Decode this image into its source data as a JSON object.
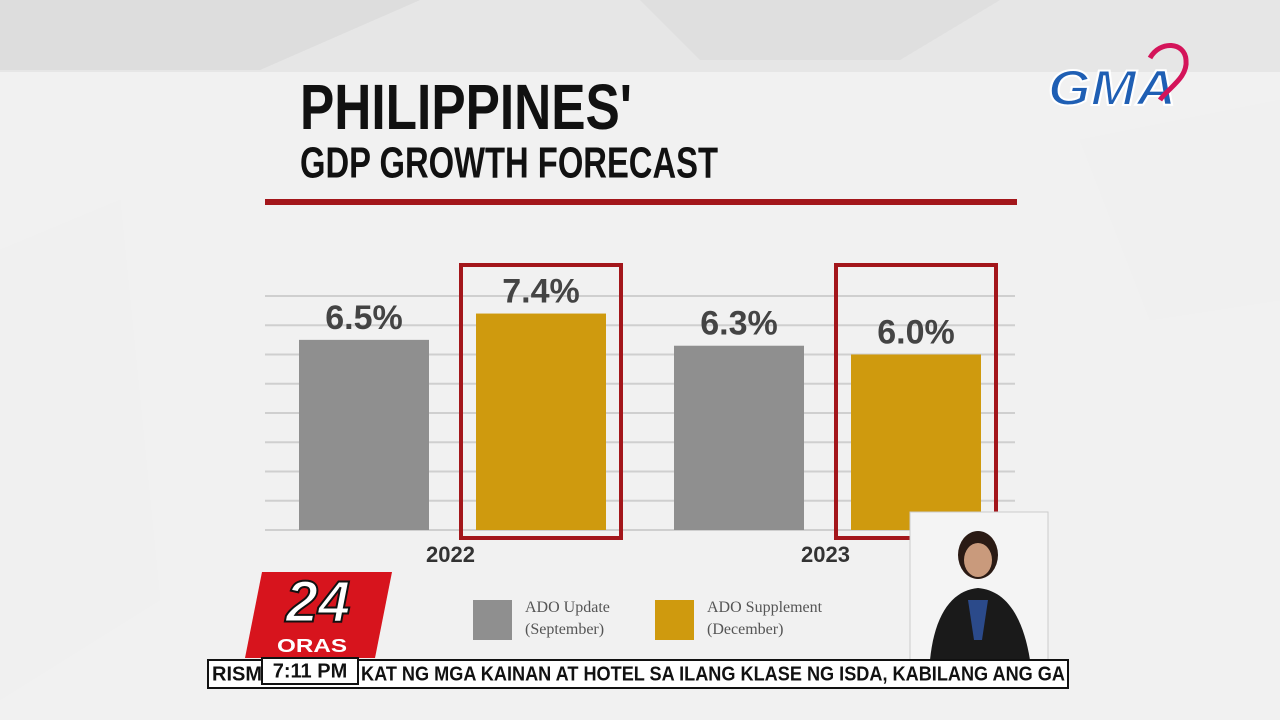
{
  "logo": "GMA",
  "chart_data": {
    "type": "bar",
    "title": "PHILIPPINES'",
    "subtitle": "GDP GROWTH FORECAST",
    "categories": [
      "2022",
      "2023"
    ],
    "series": [
      {
        "name": "ADO Update (September)",
        "color": "#8f8f8f",
        "values": [
          6.5,
          6.3
        ],
        "value_labels": [
          "6.5%",
          "6.3%"
        ]
      },
      {
        "name": "ADO Supplement (December)",
        "color": "#cf9a0e",
        "values": [
          7.4,
          6.0
        ],
        "value_labels": [
          "7.4%",
          "6.0%"
        ],
        "outline": "#a3161b"
      }
    ],
    "ylim": [
      0,
      8
    ],
    "yticks": [
      0,
      1,
      2,
      3,
      4,
      5,
      6,
      7,
      8
    ],
    "grid": true,
    "show_ytick_labels": false,
    "legend": "bottom"
  },
  "program": {
    "number": "24",
    "name": "ORAS"
  },
  "clock": "7:11 PM",
  "ticker": [
    "RISM",
    "KAT NG MGA KAINAN AT HOTEL SA ILANG KLASE NG ISDA, KABILANG ANG GA"
  ]
}
